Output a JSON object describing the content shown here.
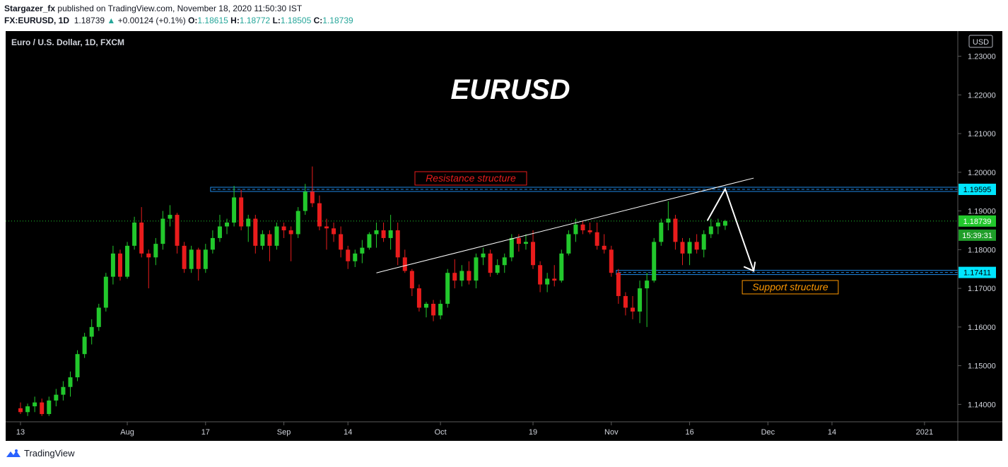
{
  "header": {
    "author": "Stargazer_fx",
    "published_text": "published on TradingView.com, November 18, 2020 11:50:30 IST",
    "symbol": "FX:EURUSD, 1D",
    "last": "1.18739",
    "change": "+0.00124 (+0.1%)",
    "o_label": "O:",
    "o_value": "1.18615",
    "h_label": "H:",
    "h_value": "1.18772",
    "l_label": "L:",
    "l_value": "1.18505",
    "c_label": "C:",
    "c_value": "1.18739"
  },
  "footer": {
    "brand": "TradingView"
  },
  "colors": {
    "up": "#26a69a",
    "candle_up": "#22c82c",
    "candle_down": "#e91c1c",
    "zone": "#1e88e5",
    "price_label": "#00e5ff"
  },
  "chart_data": {
    "type": "candlestick",
    "title": "EURUSD",
    "instrument": "Euro / U.S. Dollar, 1D, FXCM",
    "currency": "USD",
    "ylim": [
      1.1355,
      1.2365
    ],
    "y_ticks": [
      "1.14000",
      "1.15000",
      "1.16000",
      "1.17000",
      "1.18000",
      "1.19000",
      "1.20000",
      "1.21000",
      "1.22000",
      "1.23000"
    ],
    "x_ticks": [
      {
        "label": "13",
        "i": 0
      },
      {
        "label": "Aug",
        "i": 15
      },
      {
        "label": "17",
        "i": 26
      },
      {
        "label": "Sep",
        "i": 37
      },
      {
        "label": "14",
        "i": 46
      },
      {
        "label": "Oct",
        "i": 59
      },
      {
        "label": "19",
        "i": 72
      },
      {
        "label": "Nov",
        "i": 83
      },
      {
        "label": "16",
        "i": 94
      },
      {
        "label": "Dec",
        "i": 105
      },
      {
        "label": "14",
        "i": 114
      },
      {
        "label": "2021",
        "i": 127
      }
    ],
    "candles": [
      [
        1.139,
        1.1405,
        1.1375,
        1.138
      ],
      [
        1.138,
        1.1402,
        1.137,
        1.1395
      ],
      [
        1.1395,
        1.142,
        1.138,
        1.1405
      ],
      [
        1.1405,
        1.1415,
        1.137,
        1.1375
      ],
      [
        1.1375,
        1.142,
        1.137,
        1.141
      ],
      [
        1.141,
        1.144,
        1.1395,
        1.1425
      ],
      [
        1.1425,
        1.146,
        1.141,
        1.1445
      ],
      [
        1.1445,
        1.1485,
        1.142,
        1.147
      ],
      [
        1.147,
        1.154,
        1.146,
        1.153
      ],
      [
        1.153,
        1.1585,
        1.152,
        1.1575
      ],
      [
        1.1575,
        1.162,
        1.1555,
        1.16
      ],
      [
        1.16,
        1.166,
        1.159,
        1.165
      ],
      [
        1.165,
        1.174,
        1.164,
        1.173
      ],
      [
        1.173,
        1.181,
        1.171,
        1.179
      ],
      [
        1.179,
        1.18,
        1.172,
        1.173
      ],
      [
        1.173,
        1.182,
        1.1725,
        1.181
      ],
      [
        1.181,
        1.1885,
        1.18,
        1.187
      ],
      [
        1.187,
        1.191,
        1.178,
        1.179
      ],
      [
        1.179,
        1.18,
        1.17,
        1.178
      ],
      [
        1.178,
        1.183,
        1.176,
        1.1815
      ],
      [
        1.1815,
        1.19,
        1.18,
        1.188
      ],
      [
        1.188,
        1.1915,
        1.186,
        1.189
      ],
      [
        1.189,
        1.1895,
        1.179,
        1.181
      ],
      [
        1.181,
        1.182,
        1.174,
        1.175
      ],
      [
        1.175,
        1.181,
        1.174,
        1.18
      ],
      [
        1.18,
        1.1805,
        1.172,
        1.175
      ],
      [
        1.175,
        1.1815,
        1.174,
        1.18
      ],
      [
        1.18,
        1.185,
        1.179,
        1.183
      ],
      [
        1.183,
        1.189,
        1.182,
        1.186
      ],
      [
        1.186,
        1.188,
        1.184,
        1.187
      ],
      [
        1.187,
        1.1965,
        1.186,
        1.1935
      ],
      [
        1.1935,
        1.1955,
        1.185,
        1.186
      ],
      [
        1.186,
        1.189,
        1.182,
        1.188
      ],
      [
        1.188,
        1.189,
        1.179,
        1.181
      ],
      [
        1.181,
        1.185,
        1.18,
        1.184
      ],
      [
        1.184,
        1.185,
        1.177,
        1.181
      ],
      [
        1.181,
        1.187,
        1.18,
        1.186
      ],
      [
        1.186,
        1.187,
        1.183,
        1.185
      ],
      [
        1.185,
        1.186,
        1.177,
        1.184
      ],
      [
        1.184,
        1.191,
        1.183,
        1.19
      ],
      [
        1.19,
        1.197,
        1.189,
        1.195
      ],
      [
        1.195,
        1.2015,
        1.191,
        1.192
      ],
      [
        1.192,
        1.194,
        1.185,
        1.186
      ],
      [
        1.186,
        1.188,
        1.18,
        1.1855
      ],
      [
        1.1855,
        1.187,
        1.182,
        1.184
      ],
      [
        1.184,
        1.186,
        1.178,
        1.18
      ],
      [
        1.18,
        1.181,
        1.175,
        1.177
      ],
      [
        1.177,
        1.18,
        1.1755,
        1.179
      ],
      [
        1.179,
        1.1825,
        1.1765,
        1.1805
      ],
      [
        1.1805,
        1.1845,
        1.18,
        1.184
      ],
      [
        1.184,
        1.187,
        1.1805,
        1.185
      ],
      [
        1.185,
        1.187,
        1.182,
        1.183
      ],
      [
        1.183,
        1.189,
        1.18,
        1.185
      ],
      [
        1.185,
        1.187,
        1.176,
        1.178
      ],
      [
        1.178,
        1.18,
        1.174,
        1.1745
      ],
      [
        1.1745,
        1.175,
        1.168,
        1.17
      ],
      [
        1.17,
        1.171,
        1.164,
        1.165
      ],
      [
        1.165,
        1.1665,
        1.1625,
        1.166
      ],
      [
        1.166,
        1.167,
        1.1615,
        1.163
      ],
      [
        1.163,
        1.167,
        1.162,
        1.166
      ],
      [
        1.166,
        1.175,
        1.165,
        1.174
      ],
      [
        1.174,
        1.1775,
        1.17,
        1.172
      ],
      [
        1.172,
        1.176,
        1.1705,
        1.1745
      ],
      [
        1.1745,
        1.177,
        1.171,
        1.172
      ],
      [
        1.172,
        1.179,
        1.17,
        1.178
      ],
      [
        1.178,
        1.1805,
        1.176,
        1.179
      ],
      [
        1.179,
        1.18,
        1.173,
        1.174
      ],
      [
        1.174,
        1.1775,
        1.1735,
        1.176
      ],
      [
        1.176,
        1.179,
        1.174,
        1.178
      ],
      [
        1.178,
        1.184,
        1.177,
        1.183
      ],
      [
        1.183,
        1.184,
        1.1795,
        1.1815
      ],
      [
        1.1815,
        1.184,
        1.18,
        1.182
      ],
      [
        1.182,
        1.185,
        1.175,
        1.176
      ],
      [
        1.176,
        1.177,
        1.169,
        1.171
      ],
      [
        1.171,
        1.174,
        1.169,
        1.1725
      ],
      [
        1.1725,
        1.176,
        1.1705,
        1.172
      ],
      [
        1.172,
        1.18,
        1.1715,
        1.179
      ],
      [
        1.179,
        1.185,
        1.1785,
        1.184
      ],
      [
        1.184,
        1.188,
        1.182,
        1.1865
      ],
      [
        1.1865,
        1.1875,
        1.184,
        1.185
      ],
      [
        1.185,
        1.187,
        1.184,
        1.1845
      ],
      [
        1.1845,
        1.187,
        1.18,
        1.181
      ],
      [
        1.181,
        1.184,
        1.179,
        1.18
      ],
      [
        1.18,
        1.181,
        1.173,
        1.174
      ],
      [
        1.174,
        1.175,
        1.166,
        1.168
      ],
      [
        1.168,
        1.169,
        1.163,
        1.165
      ],
      [
        1.165,
        1.168,
        1.162,
        1.164
      ],
      [
        1.164,
        1.172,
        1.161,
        1.17
      ],
      [
        1.17,
        1.174,
        1.16,
        1.172
      ],
      [
        1.172,
        1.183,
        1.1715,
        1.182
      ],
      [
        1.182,
        1.188,
        1.181,
        1.187
      ],
      [
        1.187,
        1.1925,
        1.185,
        1.188
      ],
      [
        1.188,
        1.189,
        1.18,
        1.182
      ],
      [
        1.182,
        1.183,
        1.176,
        1.179
      ],
      [
        1.179,
        1.183,
        1.176,
        1.182
      ],
      [
        1.182,
        1.184,
        1.179,
        1.18
      ],
      [
        1.18,
        1.185,
        1.178,
        1.184
      ],
      [
        1.184,
        1.188,
        1.183,
        1.186
      ],
      [
        1.186,
        1.188,
        1.184,
        1.187
      ],
      [
        1.1862,
        1.1877,
        1.1851,
        1.1874
      ]
    ],
    "resistance": {
      "label": "Resistance structure",
      "price": 1.19595,
      "price_label": "1.19595"
    },
    "support": {
      "label": "Support structure",
      "price": 1.17411,
      "price_label": "1.17411"
    },
    "current": {
      "price": 1.18739,
      "price_label": "1.18739",
      "countdown": "15:39:31"
    },
    "trendline": {
      "from": {
        "i": 50,
        "price": 1.174
      },
      "to": {
        "i": 103,
        "price": 1.1985
      }
    },
    "projection": [
      {
        "i": 96.5,
        "price": 1.1875
      },
      {
        "i": 99,
        "price": 1.1957
      },
      {
        "i": 103,
        "price": 1.1745
      }
    ]
  }
}
